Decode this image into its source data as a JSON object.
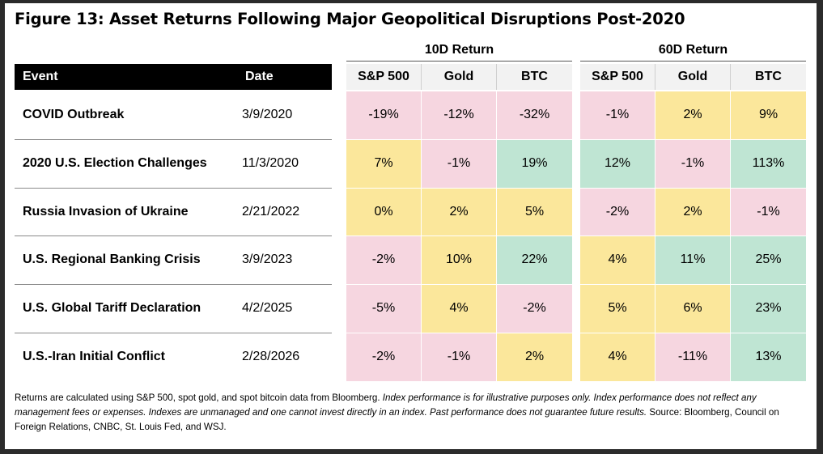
{
  "title": "Figure 13: Asset Returns Following Major Geopolitical Disruptions Post-2020",
  "headers": {
    "event": "Event",
    "date": "Date",
    "group_10d": "10D Return",
    "group_60d": "60D Return",
    "assets": [
      "S&P 500",
      "Gold",
      "BTC"
    ]
  },
  "colors": {
    "negative": "#f6d6e0",
    "low": "#fbe79b",
    "high": "#bfe5d3",
    "header_bg": "#f2f2f2"
  },
  "chart_data": {
    "type": "table",
    "columns": [
      "Event",
      "Date",
      "10D S&P 500",
      "10D Gold",
      "10D BTC",
      "60D S&P 500",
      "60D Gold",
      "60D BTC"
    ],
    "rows": [
      {
        "event": "COVID Outbreak",
        "date": "3/9/2020",
        "ret10": [
          {
            "v": "-19%",
            "c": "negative"
          },
          {
            "v": "-12%",
            "c": "negative"
          },
          {
            "v": "-32%",
            "c": "negative"
          }
        ],
        "ret60": [
          {
            "v": "-1%",
            "c": "negative"
          },
          {
            "v": "2%",
            "c": "low"
          },
          {
            "v": "9%",
            "c": "low"
          }
        ]
      },
      {
        "event": "2020 U.S. Election Challenges",
        "date": "11/3/2020",
        "ret10": [
          {
            "v": "7%",
            "c": "low"
          },
          {
            "v": "-1%",
            "c": "negative"
          },
          {
            "v": "19%",
            "c": "high"
          }
        ],
        "ret60": [
          {
            "v": "12%",
            "c": "high"
          },
          {
            "v": "-1%",
            "c": "negative"
          },
          {
            "v": "113%",
            "c": "high"
          }
        ]
      },
      {
        "event": "Russia Invasion of Ukraine",
        "date": "2/21/2022",
        "ret10": [
          {
            "v": "0%",
            "c": "low"
          },
          {
            "v": "2%",
            "c": "low"
          },
          {
            "v": "5%",
            "c": "low"
          }
        ],
        "ret60": [
          {
            "v": "-2%",
            "c": "negative"
          },
          {
            "v": "2%",
            "c": "low"
          },
          {
            "v": "-1%",
            "c": "negative"
          }
        ]
      },
      {
        "event": "U.S. Regional Banking Crisis",
        "date": "3/9/2023",
        "ret10": [
          {
            "v": "-2%",
            "c": "negative"
          },
          {
            "v": "10%",
            "c": "low"
          },
          {
            "v": "22%",
            "c": "high"
          }
        ],
        "ret60": [
          {
            "v": "4%",
            "c": "low"
          },
          {
            "v": "11%",
            "c": "high"
          },
          {
            "v": "25%",
            "c": "high"
          }
        ]
      },
      {
        "event": "U.S. Global Tariff Declaration",
        "date": "4/2/2025",
        "ret10": [
          {
            "v": "-5%",
            "c": "negative"
          },
          {
            "v": "4%",
            "c": "low"
          },
          {
            "v": "-2%",
            "c": "negative"
          }
        ],
        "ret60": [
          {
            "v": "5%",
            "c": "low"
          },
          {
            "v": "6%",
            "c": "low"
          },
          {
            "v": "23%",
            "c": "high"
          }
        ]
      },
      {
        "event": "U.S.-Iran Initial Conflict",
        "date": "2/28/2026",
        "ret10": [
          {
            "v": "-2%",
            "c": "negative"
          },
          {
            "v": "-1%",
            "c": "negative"
          },
          {
            "v": "2%",
            "c": "low"
          }
        ],
        "ret60": [
          {
            "v": "4%",
            "c": "low"
          },
          {
            "v": "-11%",
            "c": "negative"
          },
          {
            "v": "13%",
            "c": "high"
          }
        ]
      }
    ]
  },
  "footnote": {
    "part1": "Returns are calculated using S&P 500, spot gold, and spot bitcoin data from Bloomberg. ",
    "part2_italic": "Index performance is for illustrative purposes only. Index performance does not reflect any management fees or expenses. Indexes are unmanaged and one cannot invest directly in an index. Past performance does not guarantee future results.",
    "part3": " Source: Bloomberg, Council on Foreign Relations, CNBC, St. Louis Fed, and WSJ."
  }
}
